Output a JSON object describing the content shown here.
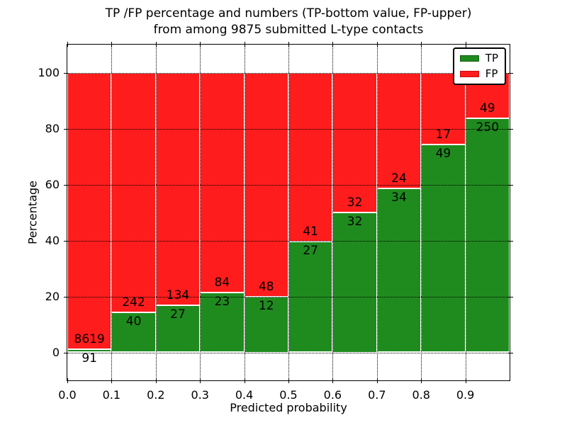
{
  "figure": {
    "title_line1": "TP /FP percentage and numbers (TP-bottom value, FP-upper)",
    "title_line2": "from among 9875 submitted L-type contacts"
  },
  "chart_data": {
    "type": "bar",
    "subtype": "stacked-100-percent",
    "title": "TP /FP percentage and numbers (TP-bottom value, FP-upper) from among 9875 submitted L-type contacts",
    "xlabel": "Predicted probability",
    "ylabel": "Percentage",
    "total_submitted_contacts": 9875,
    "xlim": [
      0.0,
      1.0
    ],
    "ylim": [
      -10,
      110
    ],
    "x_tick_labels": [
      "0.0",
      "0.1",
      "0.2",
      "0.3",
      "0.4",
      "0.5",
      "0.6",
      "0.7",
      "0.8",
      "0.9"
    ],
    "y_tick_values": [
      0,
      20,
      40,
      60,
      80,
      100
    ],
    "grid": "dotted-both-axes-on-top",
    "categories": [
      "0.0-0.1",
      "0.1-0.2",
      "0.2-0.3",
      "0.3-0.4",
      "0.4-0.5",
      "0.5-0.6",
      "0.6-0.7",
      "0.7-0.8",
      "0.8-0.9",
      "0.9-1.0"
    ],
    "series": [
      {
        "name": "TP",
        "color": "#1F8B1F",
        "counts": [
          91,
          40,
          27,
          23,
          12,
          27,
          32,
          34,
          49,
          250
        ]
      },
      {
        "name": "FP",
        "color": "#FF1C1C",
        "counts": [
          8619,
          242,
          134,
          84,
          48,
          41,
          32,
          24,
          17,
          49
        ]
      }
    ],
    "tp_percent_of_bin": [
      1.04,
      14.18,
      16.77,
      21.5,
      20.0,
      39.71,
      50.0,
      58.62,
      74.24,
      83.61
    ],
    "bar_edge_color": "#ffffff",
    "legend": {
      "position": "upper-right",
      "entries": [
        {
          "label": "TP",
          "color": "#1F8B1F",
          "edge": "#0E5E0E"
        },
        {
          "label": "FP",
          "color": "#FF1C1C",
          "edge": "#C90F0F"
        }
      ]
    }
  }
}
